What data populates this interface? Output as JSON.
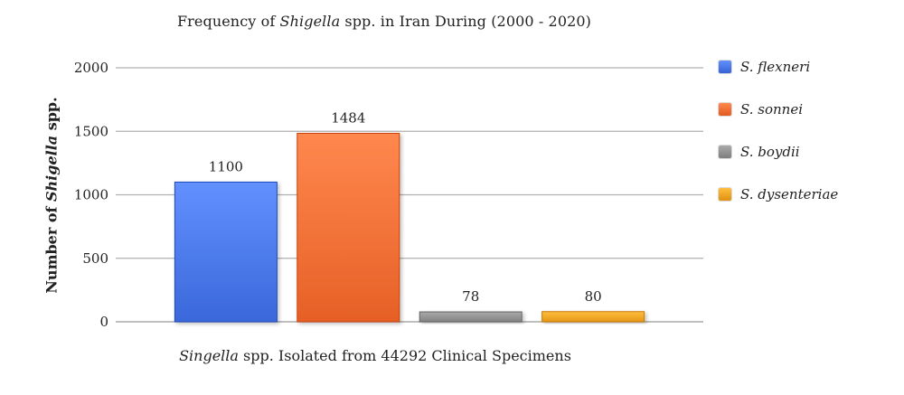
{
  "chart_data": {
    "type": "bar",
    "title": {
      "pre": "Frequency of ",
      "italic": "Shigella",
      "post": " spp. in Iran During (2000 - 2020)"
    },
    "xlabel": {
      "italic": "Singella",
      "post": " spp. Isolated from 44292 Clinical Specimens"
    },
    "ylabel": {
      "pre": "Number of ",
      "italic": "Shigella",
      "post": " spp."
    },
    "ylim": [
      0,
      2000
    ],
    "yticks": [
      0,
      500,
      1000,
      1500,
      2000
    ],
    "grid": true,
    "legend_position": "right",
    "series": [
      {
        "name": "S. flexneri",
        "value": 1100,
        "color": "#4472e4"
      },
      {
        "name": "S. sonnei",
        "value": 1484,
        "color": "#f06a30"
      },
      {
        "name": "S. boydii",
        "value": 78,
        "color": "#8c8c8c"
      },
      {
        "name": "S. dysenteriae",
        "value": 80,
        "color": "#f0a020"
      }
    ]
  }
}
